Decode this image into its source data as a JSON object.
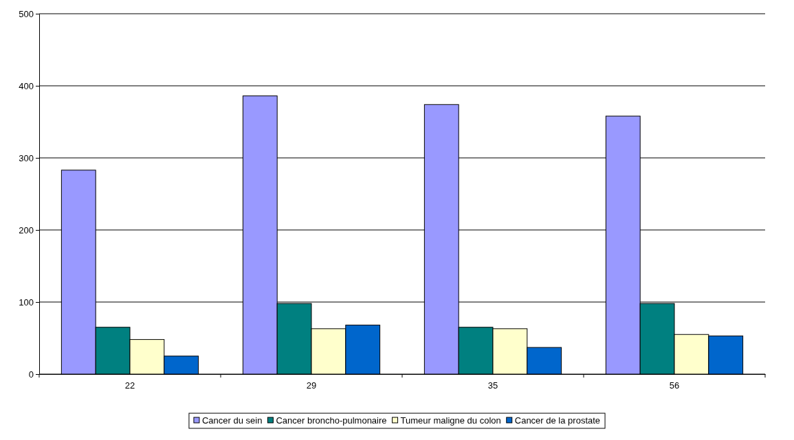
{
  "chart_data": {
    "type": "bar",
    "categories": [
      "22",
      "29",
      "35",
      "56"
    ],
    "series": [
      {
        "name": "Cancer du sein",
        "color": "#9999ff",
        "values": [
          283,
          386,
          374,
          358
        ]
      },
      {
        "name": "Cancer broncho-pulmonaire",
        "color": "#008080",
        "values": [
          65,
          98,
          65,
          98
        ]
      },
      {
        "name": "Tumeur maligne du colon",
        "color": "#ffffcc",
        "values": [
          48,
          63,
          63,
          55
        ]
      },
      {
        "name": "Cancer de la prostate",
        "color": "#0066cc",
        "values": [
          25,
          68,
          37,
          53
        ]
      }
    ],
    "ylim": [
      0,
      500
    ],
    "yticks": [
      0,
      100,
      200,
      300,
      400,
      500
    ],
    "grid": "y",
    "legend": "bottom"
  }
}
